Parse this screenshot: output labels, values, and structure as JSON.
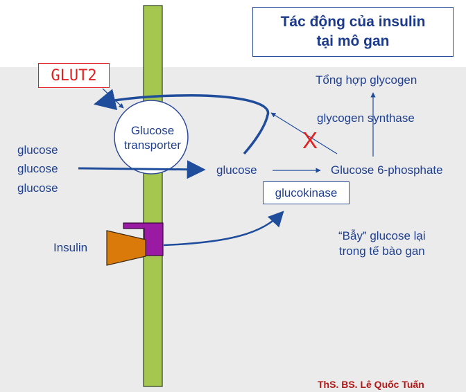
{
  "title": {
    "line1": "Tác động của insulin",
    "line2": "tại mô gan"
  },
  "transporter_name": "GLUT2",
  "transporter": {
    "line1": "Glucose",
    "line2": "transporter"
  },
  "outside_glucose": [
    "glucose",
    "glucose",
    "glucose"
  ],
  "insulin_label": "Insulin",
  "inside_glucose": "glucose",
  "enzyme_glucokinase": "glucokinase",
  "g6p_label": "Glucose 6-phosphate",
  "enzyme_glycogen_synthase": "glycogen synthase",
  "glycogen_label": "Tổng hợp glycogen",
  "blocked_mark": "X",
  "trap_note": {
    "line1": "“Bẫy” glucose lại",
    "line2": "trong tế bào gan"
  },
  "author": "ThS. BS. Lê Quốc Tuấn",
  "colors": {
    "membrane": "#a5c64f",
    "arrow_blue": "#1f4d9c",
    "block_red": "#e02020",
    "receptor": "#9b1aa3",
    "insulin": "#d97a0a"
  }
}
